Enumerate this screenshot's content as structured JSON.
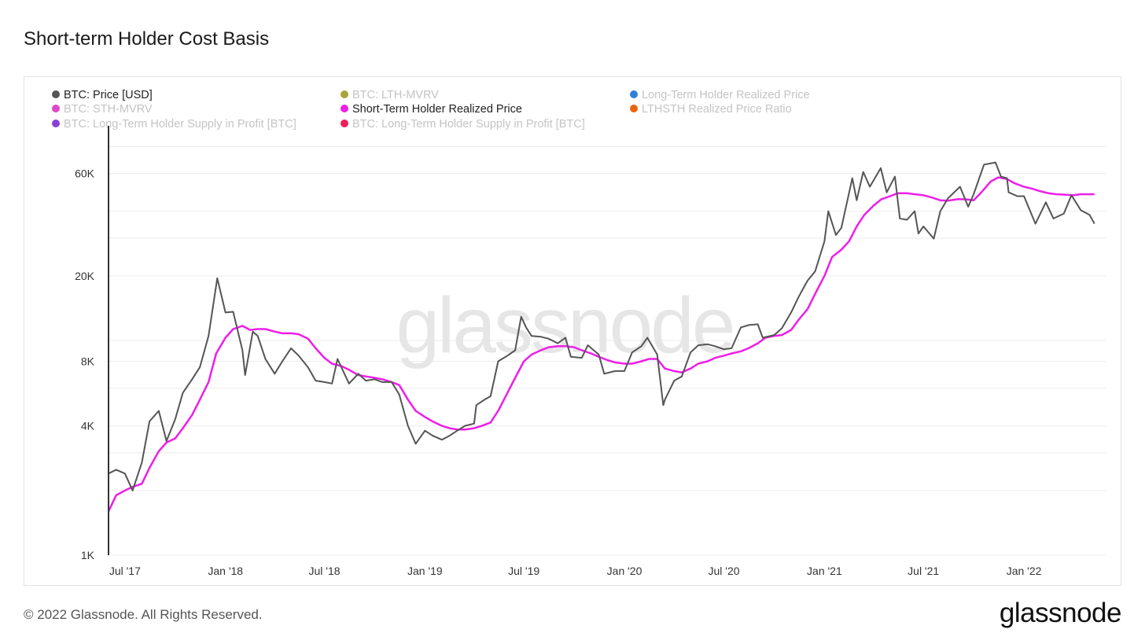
{
  "title": "Short-term Holder Cost Basis",
  "footer": "© 2022 Glassnode. All Rights Reserved.",
  "logo": "glassnode",
  "watermark": "glassnode",
  "chart_data": {
    "type": "line",
    "title": "Short-term Holder Cost Basis",
    "y_scale": "log",
    "ylim": [
      1000,
      100000
    ],
    "y_ticks": [
      {
        "value": 1000,
        "label": "1K"
      },
      {
        "value": 4000,
        "label": "4K"
      },
      {
        "value": 8000,
        "label": "8K"
      },
      {
        "value": 20000,
        "label": "20K"
      },
      {
        "value": 60000,
        "label": "60K"
      }
    ],
    "y_gridlines": [
      1000,
      2000,
      3000,
      4000,
      6000,
      8000,
      10000,
      20000,
      30000,
      40000,
      60000,
      80000
    ],
    "xlim": [
      "2017-06-01",
      "2022-06-01"
    ],
    "x_ticks": [
      {
        "date": "2017-07-01",
        "label": "Jul '17"
      },
      {
        "date": "2018-01-01",
        "label": "Jan '18"
      },
      {
        "date": "2018-07-01",
        "label": "Jul '18"
      },
      {
        "date": "2019-01-01",
        "label": "Jan '19"
      },
      {
        "date": "2019-07-01",
        "label": "Jul '19"
      },
      {
        "date": "2020-01-01",
        "label": "Jan '20"
      },
      {
        "date": "2020-07-01",
        "label": "Jul '20"
      },
      {
        "date": "2021-01-01",
        "label": "Jan '21"
      },
      {
        "date": "2021-07-01",
        "label": "Jul '21"
      },
      {
        "date": "2022-01-01",
        "label": "Jan '22"
      }
    ],
    "legend_position": "top-left",
    "legend": [
      {
        "name": "BTC: Price [USD]",
        "color": "#555555",
        "active": true
      },
      {
        "name": "BTC: LTH-MVRV",
        "color": "#a8a43a",
        "active": false
      },
      {
        "name": "Long-Term Holder Realized Price",
        "color": "#2f80d6",
        "active": false
      },
      {
        "name": "BTC: STH-MVRV",
        "color": "#e247c8",
        "active": false
      },
      {
        "name": "Short-Term Holder Realized Price",
        "color": "#ee1ee8",
        "active": true
      },
      {
        "name": "LTHSTH Realized Price Ratio",
        "color": "#f0640f",
        "active": false
      },
      {
        "name": "BTC: Long-Term Holder Supply in Profit [BTC]",
        "color": "#8a3fd6",
        "active": false
      },
      {
        "name": "BTC: Long-Term Holder Supply in Profit [BTC]",
        "color": "#ee1f57",
        "active": false
      }
    ],
    "series": [
      {
        "name": "BTC: Price [USD]",
        "color": "#555555",
        "points": [
          [
            "2017-06-01",
            2400
          ],
          [
            "2017-06-15",
            2500
          ],
          [
            "2017-07-01",
            2400
          ],
          [
            "2017-07-15",
            2000
          ],
          [
            "2017-08-01",
            2700
          ],
          [
            "2017-08-15",
            4200
          ],
          [
            "2017-09-01",
            4700
          ],
          [
            "2017-09-15",
            3400
          ],
          [
            "2017-10-01",
            4300
          ],
          [
            "2017-10-15",
            5700
          ],
          [
            "2017-11-01",
            6600
          ],
          [
            "2017-11-15",
            7500
          ],
          [
            "2017-12-01",
            10500
          ],
          [
            "2017-12-17",
            19500
          ],
          [
            "2018-01-01",
            13500
          ],
          [
            "2018-01-15",
            13600
          ],
          [
            "2018-02-01",
            9000
          ],
          [
            "2018-02-06",
            6900
          ],
          [
            "2018-02-20",
            11000
          ],
          [
            "2018-03-01",
            10500
          ],
          [
            "2018-03-15",
            8200
          ],
          [
            "2018-04-01",
            7000
          ],
          [
            "2018-04-15",
            8000
          ],
          [
            "2018-05-01",
            9200
          ],
          [
            "2018-05-15",
            8500
          ],
          [
            "2018-06-01",
            7500
          ],
          [
            "2018-06-15",
            6500
          ],
          [
            "2018-07-01",
            6400
          ],
          [
            "2018-07-15",
            6300
          ],
          [
            "2018-07-25",
            8200
          ],
          [
            "2018-08-15",
            6300
          ],
          [
            "2018-09-01",
            7000
          ],
          [
            "2018-09-15",
            6500
          ],
          [
            "2018-10-01",
            6600
          ],
          [
            "2018-10-15",
            6400
          ],
          [
            "2018-11-01",
            6400
          ],
          [
            "2018-11-15",
            5600
          ],
          [
            "2018-12-01",
            4000
          ],
          [
            "2018-12-15",
            3300
          ],
          [
            "2019-01-01",
            3800
          ],
          [
            "2019-01-15",
            3600
          ],
          [
            "2019-02-01",
            3450
          ],
          [
            "2019-02-15",
            3600
          ],
          [
            "2019-03-01",
            3800
          ],
          [
            "2019-03-15",
            4000
          ],
          [
            "2019-04-01",
            4100
          ],
          [
            "2019-04-05",
            5000
          ],
          [
            "2019-04-20",
            5300
          ],
          [
            "2019-05-01",
            5500
          ],
          [
            "2019-05-15",
            8000
          ],
          [
            "2019-06-01",
            8500
          ],
          [
            "2019-06-15",
            9000
          ],
          [
            "2019-06-26",
            12900
          ],
          [
            "2019-07-05",
            11500
          ],
          [
            "2019-07-15",
            10500
          ],
          [
            "2019-08-01",
            10400
          ],
          [
            "2019-08-15",
            10200
          ],
          [
            "2019-09-01",
            9700
          ],
          [
            "2019-09-15",
            10300
          ],
          [
            "2019-09-25",
            8400
          ],
          [
            "2019-10-15",
            8300
          ],
          [
            "2019-10-26",
            9500
          ],
          [
            "2019-11-15",
            8600
          ],
          [
            "2019-11-25",
            7000
          ],
          [
            "2019-12-15",
            7200
          ],
          [
            "2020-01-01",
            7200
          ],
          [
            "2020-01-15",
            8800
          ],
          [
            "2020-02-01",
            9400
          ],
          [
            "2020-02-12",
            10300
          ],
          [
            "2020-03-01",
            8600
          ],
          [
            "2020-03-12",
            5000
          ],
          [
            "2020-03-15",
            5300
          ],
          [
            "2020-04-01",
            6500
          ],
          [
            "2020-04-15",
            6800
          ],
          [
            "2020-05-01",
            8800
          ],
          [
            "2020-05-15",
            9500
          ],
          [
            "2020-06-01",
            9600
          ],
          [
            "2020-06-15",
            9400
          ],
          [
            "2020-07-01",
            9100
          ],
          [
            "2020-07-15",
            9200
          ],
          [
            "2020-08-01",
            11500
          ],
          [
            "2020-08-15",
            11800
          ],
          [
            "2020-09-01",
            11900
          ],
          [
            "2020-09-10",
            10300
          ],
          [
            "2020-10-01",
            10600
          ],
          [
            "2020-10-15",
            11400
          ],
          [
            "2020-11-01",
            13500
          ],
          [
            "2020-11-15",
            16000
          ],
          [
            "2020-12-01",
            19000
          ],
          [
            "2020-12-15",
            21000
          ],
          [
            "2021-01-01",
            29000
          ],
          [
            "2021-01-08",
            40000
          ],
          [
            "2021-01-22",
            31000
          ],
          [
            "2021-02-01",
            33500
          ],
          [
            "2021-02-21",
            57000
          ],
          [
            "2021-03-01",
            45000
          ],
          [
            "2021-03-13",
            61000
          ],
          [
            "2021-03-25",
            52000
          ],
          [
            "2021-04-14",
            63500
          ],
          [
            "2021-04-25",
            49000
          ],
          [
            "2021-05-10",
            58000
          ],
          [
            "2021-05-19",
            37000
          ],
          [
            "2021-06-01",
            36500
          ],
          [
            "2021-06-15",
            40000
          ],
          [
            "2021-06-22",
            31500
          ],
          [
            "2021-07-01",
            34000
          ],
          [
            "2021-07-20",
            29800
          ],
          [
            "2021-08-01",
            40000
          ],
          [
            "2021-08-15",
            46000
          ],
          [
            "2021-09-06",
            52000
          ],
          [
            "2021-09-21",
            42000
          ],
          [
            "2021-10-01",
            48000
          ],
          [
            "2021-10-20",
            66000
          ],
          [
            "2021-11-10",
            67500
          ],
          [
            "2021-11-20",
            58000
          ],
          [
            "2021-12-01",
            57000
          ],
          [
            "2021-12-04",
            49000
          ],
          [
            "2021-12-20",
            47000
          ],
          [
            "2022-01-01",
            47000
          ],
          [
            "2022-01-22",
            35000
          ],
          [
            "2022-02-10",
            44000
          ],
          [
            "2022-02-24",
            37000
          ],
          [
            "2022-03-15",
            39000
          ],
          [
            "2022-03-29",
            47500
          ],
          [
            "2022-04-15",
            40500
          ],
          [
            "2022-05-01",
            38500
          ],
          [
            "2022-05-10",
            35000
          ]
        ]
      },
      {
        "name": "Short-Term Holder Realized Price",
        "color": "#ee1ee8",
        "points": [
          [
            "2017-06-01",
            1600
          ],
          [
            "2017-06-15",
            1900
          ],
          [
            "2017-07-01",
            2000
          ],
          [
            "2017-07-15",
            2080
          ],
          [
            "2017-08-01",
            2150
          ],
          [
            "2017-08-15",
            2550
          ],
          [
            "2017-09-01",
            3050
          ],
          [
            "2017-09-15",
            3350
          ],
          [
            "2017-10-01",
            3500
          ],
          [
            "2017-10-15",
            3900
          ],
          [
            "2017-11-01",
            4500
          ],
          [
            "2017-11-15",
            5300
          ],
          [
            "2017-12-01",
            6400
          ],
          [
            "2017-12-15",
            8700
          ],
          [
            "2018-01-01",
            10300
          ],
          [
            "2018-01-15",
            11300
          ],
          [
            "2018-02-01",
            11700
          ],
          [
            "2018-02-15",
            11200
          ],
          [
            "2018-03-01",
            11300
          ],
          [
            "2018-03-15",
            11300
          ],
          [
            "2018-04-01",
            11000
          ],
          [
            "2018-04-15",
            10800
          ],
          [
            "2018-05-01",
            10800
          ],
          [
            "2018-05-15",
            10700
          ],
          [
            "2018-06-01",
            10200
          ],
          [
            "2018-06-15",
            9200
          ],
          [
            "2018-07-01",
            8300
          ],
          [
            "2018-07-15",
            7800
          ],
          [
            "2018-08-01",
            7600
          ],
          [
            "2018-08-15",
            7300
          ],
          [
            "2018-09-01",
            6900
          ],
          [
            "2018-09-15",
            6800
          ],
          [
            "2018-10-01",
            6700
          ],
          [
            "2018-10-15",
            6600
          ],
          [
            "2018-11-01",
            6400
          ],
          [
            "2018-11-15",
            6200
          ],
          [
            "2018-12-01",
            5300
          ],
          [
            "2018-12-15",
            4700
          ],
          [
            "2019-01-01",
            4400
          ],
          [
            "2019-01-15",
            4200
          ],
          [
            "2019-02-01",
            4000
          ],
          [
            "2019-02-15",
            3900
          ],
          [
            "2019-03-01",
            3850
          ],
          [
            "2019-03-15",
            3850
          ],
          [
            "2019-04-01",
            3900
          ],
          [
            "2019-04-15",
            4000
          ],
          [
            "2019-05-01",
            4150
          ],
          [
            "2019-05-15",
            4700
          ],
          [
            "2019-06-01",
            5700
          ],
          [
            "2019-06-15",
            6700
          ],
          [
            "2019-07-01",
            8000
          ],
          [
            "2019-07-15",
            8600
          ],
          [
            "2019-08-01",
            9000
          ],
          [
            "2019-08-15",
            9300
          ],
          [
            "2019-09-01",
            9400
          ],
          [
            "2019-09-15",
            9400
          ],
          [
            "2019-10-01",
            9300
          ],
          [
            "2019-10-15",
            9000
          ],
          [
            "2019-11-01",
            8700
          ],
          [
            "2019-11-15",
            8400
          ],
          [
            "2019-12-01",
            8100
          ],
          [
            "2019-12-15",
            7900
          ],
          [
            "2020-01-01",
            7800
          ],
          [
            "2020-01-15",
            7800
          ],
          [
            "2020-02-01",
            8000
          ],
          [
            "2020-02-15",
            8200
          ],
          [
            "2020-03-01",
            8200
          ],
          [
            "2020-03-15",
            7400
          ],
          [
            "2020-04-01",
            7200
          ],
          [
            "2020-04-15",
            7100
          ],
          [
            "2020-05-01",
            7400
          ],
          [
            "2020-05-15",
            7800
          ],
          [
            "2020-06-01",
            8000
          ],
          [
            "2020-06-15",
            8300
          ],
          [
            "2020-07-01",
            8500
          ],
          [
            "2020-07-15",
            8700
          ],
          [
            "2020-08-01",
            8900
          ],
          [
            "2020-08-15",
            9200
          ],
          [
            "2020-09-01",
            9700
          ],
          [
            "2020-09-15",
            10300
          ],
          [
            "2020-10-01",
            10500
          ],
          [
            "2020-10-15",
            10600
          ],
          [
            "2020-11-01",
            11200
          ],
          [
            "2020-11-15",
            12500
          ],
          [
            "2020-12-01",
            14000
          ],
          [
            "2020-12-15",
            16500
          ],
          [
            "2021-01-01",
            20000
          ],
          [
            "2021-01-15",
            24500
          ],
          [
            "2021-02-01",
            26500
          ],
          [
            "2021-02-15",
            29000
          ],
          [
            "2021-03-01",
            34000
          ],
          [
            "2021-03-15",
            38500
          ],
          [
            "2021-04-01",
            42500
          ],
          [
            "2021-04-15",
            45500
          ],
          [
            "2021-05-01",
            47000
          ],
          [
            "2021-05-15",
            48500
          ],
          [
            "2021-06-01",
            48500
          ],
          [
            "2021-06-15",
            48000
          ],
          [
            "2021-07-01",
            47500
          ],
          [
            "2021-07-15",
            46500
          ],
          [
            "2021-08-01",
            45000
          ],
          [
            "2021-08-15",
            44800
          ],
          [
            "2021-09-01",
            45500
          ],
          [
            "2021-09-15",
            45500
          ],
          [
            "2021-10-01",
            45000
          ],
          [
            "2021-10-15",
            49000
          ],
          [
            "2021-11-01",
            55000
          ],
          [
            "2021-11-15",
            57500
          ],
          [
            "2021-12-01",
            56500
          ],
          [
            "2021-12-15",
            54000
          ],
          [
            "2022-01-01",
            52000
          ],
          [
            "2022-01-15",
            51000
          ],
          [
            "2022-02-01",
            49500
          ],
          [
            "2022-02-15",
            48500
          ],
          [
            "2022-03-01",
            48000
          ],
          [
            "2022-03-15",
            47800
          ],
          [
            "2022-04-01",
            47500
          ],
          [
            "2022-04-15",
            48000
          ],
          [
            "2022-05-01",
            48000
          ],
          [
            "2022-05-10",
            48000
          ]
        ]
      }
    ]
  }
}
